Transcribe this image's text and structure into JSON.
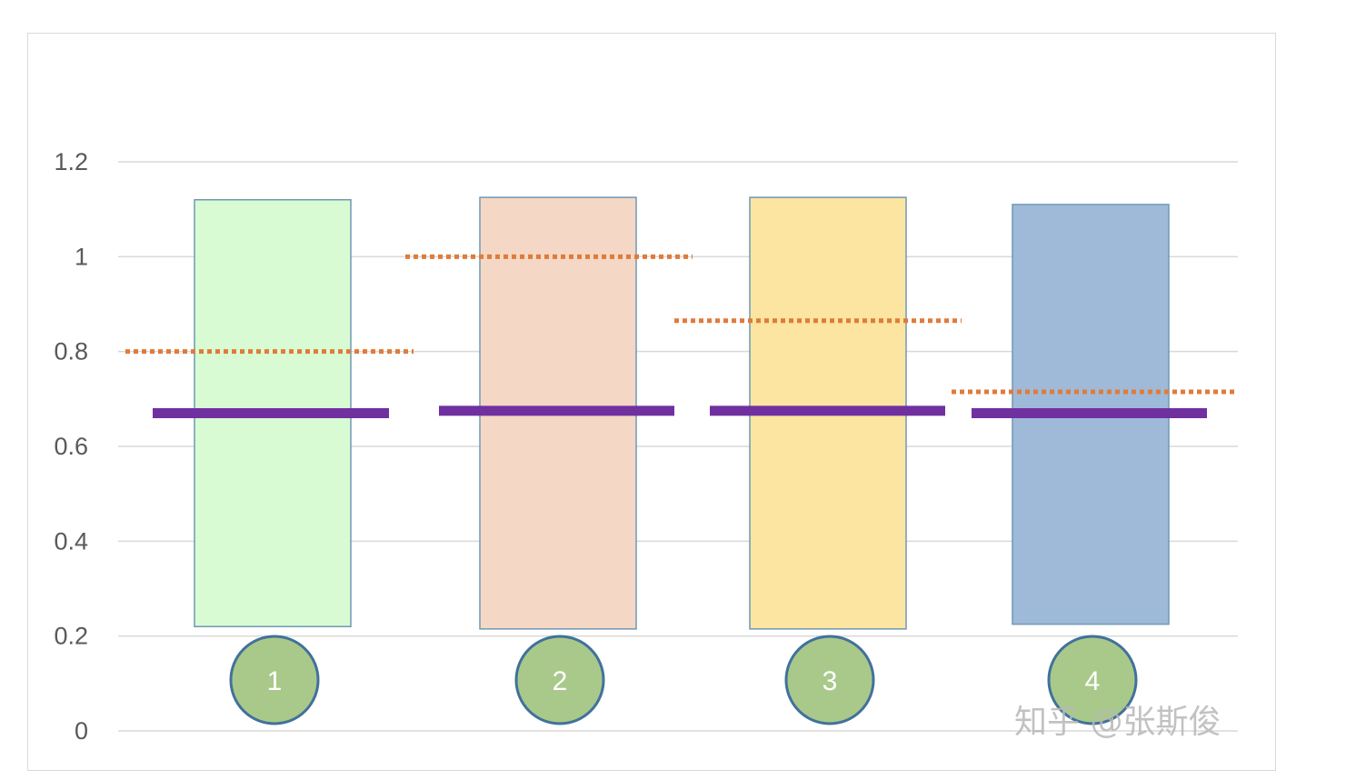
{
  "chart_data": {
    "type": "bar",
    "title": "",
    "xlabel": "",
    "ylabel": "",
    "ylim": [
      0,
      1.2
    ],
    "yticks": [
      "0",
      "0.2",
      "0.4",
      "0.6",
      "0.8",
      "1",
      "1.2"
    ],
    "categories": [
      "1",
      "2",
      "3",
      "4"
    ],
    "grid": "horizontal",
    "legend": "none",
    "bars": [
      {
        "category": "1",
        "bottom": 0.22,
        "top": 1.12,
        "color": "#d9fbd3"
      },
      {
        "category": "2",
        "bottom": 0.215,
        "top": 1.125,
        "color": "#f4d8c5"
      },
      {
        "category": "3",
        "bottom": 0.215,
        "top": 1.125,
        "color": "#fbe5a0"
      },
      {
        "category": "4",
        "bottom": 0.225,
        "top": 1.11,
        "color": "#9fbad8"
      }
    ],
    "dotted_lines": [
      0.8,
      1.0,
      0.865,
      0.715
    ],
    "solid_lines": [
      0.67,
      0.675,
      0.675,
      0.67
    ],
    "colors": {
      "dotted": "#e07b39",
      "solid": "#7030a0",
      "circle_fill": "#a9c98a",
      "circle_stroke": "#41719c",
      "grid": "#d9d9d9",
      "bar_stroke": "#6e98b5"
    }
  },
  "watermark": "知乎 @张斯俊"
}
